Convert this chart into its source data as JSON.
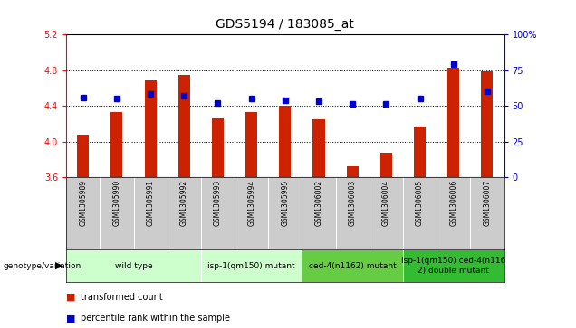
{
  "title": "GDS5194 / 183085_at",
  "samples": [
    "GSM1305989",
    "GSM1305990",
    "GSM1305991",
    "GSM1305992",
    "GSM1305993",
    "GSM1305994",
    "GSM1305995",
    "GSM1306002",
    "GSM1306003",
    "GSM1306004",
    "GSM1306005",
    "GSM1306006",
    "GSM1306007"
  ],
  "transformed_counts": [
    4.08,
    4.33,
    4.68,
    4.75,
    4.26,
    4.33,
    4.4,
    4.25,
    3.72,
    3.87,
    4.17,
    4.83,
    4.79
  ],
  "percentile_ranks": [
    56,
    55,
    58,
    57,
    52,
    55,
    54,
    53,
    51,
    51,
    55,
    79,
    60
  ],
  "y_min": 3.6,
  "y_max": 5.2,
  "y_ticks": [
    3.6,
    4.0,
    4.4,
    4.8,
    5.2
  ],
  "y_tick_labels": [
    "3.6",
    "4.0",
    "4.4",
    "4.8",
    "5.2"
  ],
  "right_y_ticks": [
    0,
    25,
    50,
    75,
    100
  ],
  "right_y_tick_labels": [
    "0",
    "25",
    "50",
    "75",
    "100%"
  ],
  "bar_color": "#cc2200",
  "dot_color": "#0000cc",
  "bar_baseline": 3.6,
  "groups": [
    {
      "label": "wild type",
      "indices": [
        0,
        1,
        2,
        3
      ],
      "color": "#ccffcc"
    },
    {
      "label": "isp-1(qm150) mutant",
      "indices": [
        4,
        5,
        6
      ],
      "color": "#ccffcc"
    },
    {
      "label": "ced-4(n1162) mutant",
      "indices": [
        7,
        8,
        9
      ],
      "color": "#66cc44"
    },
    {
      "label": "isp-1(qm150) ced-4(n116\n2) double mutant",
      "indices": [
        10,
        11,
        12
      ],
      "color": "#33bb33"
    }
  ],
  "xlabel_genotype": "genotype/variation",
  "legend_bar_label": "transformed count",
  "legend_dot_label": "percentile rank within the sample",
  "bg_color": "#ffffff",
  "sample_bg": "#cccccc",
  "sample_label_fontsize": 5.5,
  "group_label_fontsize": 6.5
}
